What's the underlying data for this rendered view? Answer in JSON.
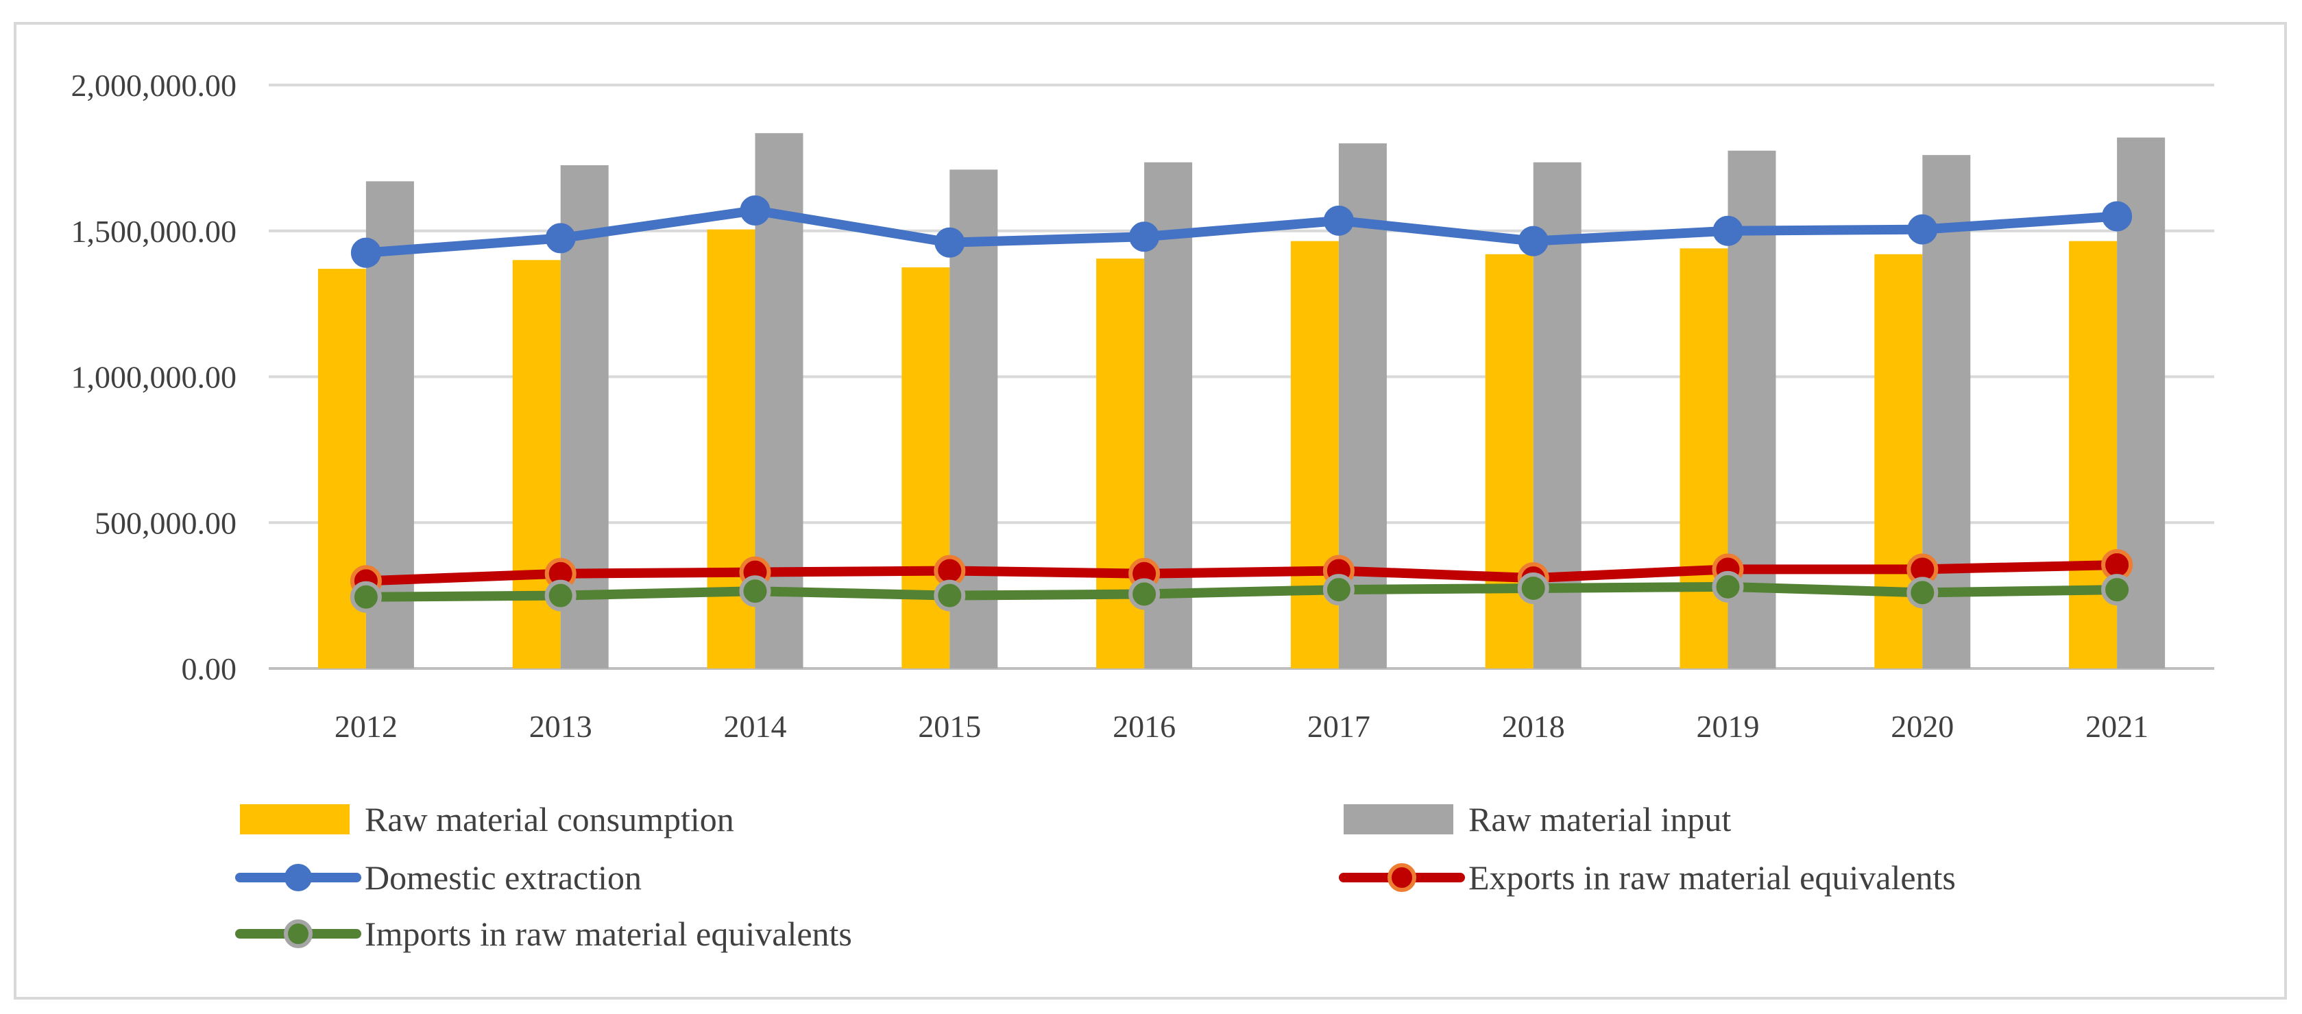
{
  "chart_data": {
    "type": "bar",
    "title": "",
    "xlabel": "",
    "ylabel": "",
    "ylim": [
      0,
      2000000
    ],
    "yticks": [
      0,
      500000,
      1000000,
      1500000,
      2000000
    ],
    "ytick_labels": [
      "0.00",
      "500,000.00",
      "1,000,000.00",
      "1,500,000.00",
      "2,000,000.00"
    ],
    "categories": [
      "2012",
      "2013",
      "2014",
      "2015",
      "2016",
      "2017",
      "2018",
      "2019",
      "2020",
      "2021"
    ],
    "grid": "horizontal",
    "legend_position": "bottom",
    "series": [
      {
        "name": "Raw material consumption",
        "kind": "bar",
        "color": "#FFC000",
        "values": [
          1370000,
          1400000,
          1505000,
          1375000,
          1405000,
          1465000,
          1420000,
          1440000,
          1420000,
          1465000
        ]
      },
      {
        "name": "Raw material input",
        "kind": "bar",
        "color": "#A5A5A5",
        "values": [
          1670000,
          1725000,
          1835000,
          1710000,
          1735000,
          1800000,
          1735000,
          1775000,
          1760000,
          1820000
        ]
      },
      {
        "name": "Domestic extraction",
        "kind": "line",
        "color": "#4472C4",
        "marker_fill": "#4472C4",
        "values": [
          1425000,
          1475000,
          1570000,
          1460000,
          1480000,
          1535000,
          1465000,
          1500000,
          1505000,
          1550000
        ]
      },
      {
        "name": "Exports in raw material equivalents",
        "kind": "line",
        "color": "#C00000",
        "marker_fill": "#C00000",
        "marker_stroke": "#ED7D31",
        "values": [
          300000,
          325000,
          330000,
          335000,
          325000,
          335000,
          310000,
          340000,
          340000,
          355000
        ]
      },
      {
        "name": "Imports in raw material equivalents",
        "kind": "line",
        "color": "#548235",
        "marker_fill": "#548235",
        "marker_stroke": "#A5A5A5",
        "values": [
          245000,
          250000,
          265000,
          250000,
          255000,
          270000,
          275000,
          280000,
          260000,
          270000
        ]
      }
    ]
  }
}
